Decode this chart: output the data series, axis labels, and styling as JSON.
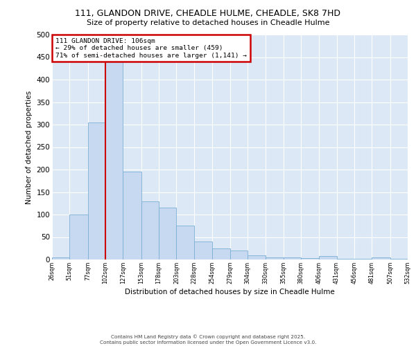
{
  "title_line1": "111, GLANDON DRIVE, CHEADLE HULME, CHEADLE, SK8 7HD",
  "title_line2": "Size of property relative to detached houses in Cheadle Hulme",
  "xlabel": "Distribution of detached houses by size in Cheadle Hulme",
  "ylabel": "Number of detached properties",
  "bar_color": "#c6d9f0",
  "bar_edge_color": "#7bafd4",
  "bg_color": "#dce8f5",
  "grid_color": "#ffffff",
  "annotation_box_color": "#cc0000",
  "vline_color": "#cc0000",
  "annotation_line1": "111 GLANDON DRIVE: 106sqm",
  "annotation_line2": "← 29% of detached houses are smaller (459)",
  "annotation_line3": "71% of semi-detached houses are larger (1,141) →",
  "footer_line1": "Contains HM Land Registry data © Crown copyright and database right 2025.",
  "footer_line2": "Contains public sector information licensed under the Open Government Licence v3.0.",
  "bin_edges": [
    26,
    51,
    77,
    102,
    127,
    153,
    178,
    203,
    228,
    254,
    279,
    304,
    330,
    355,
    380,
    406,
    431,
    456,
    481,
    507,
    532
  ],
  "bar_heights": [
    5,
    100,
    305,
    460,
    195,
    130,
    115,
    75,
    40,
    25,
    20,
    10,
    5,
    5,
    3,
    8,
    2,
    1,
    4,
    1
  ],
  "vline_x": 102,
  "ylim": [
    0,
    500
  ],
  "yticks": [
    0,
    50,
    100,
    150,
    200,
    250,
    300,
    350,
    400,
    450,
    500
  ]
}
